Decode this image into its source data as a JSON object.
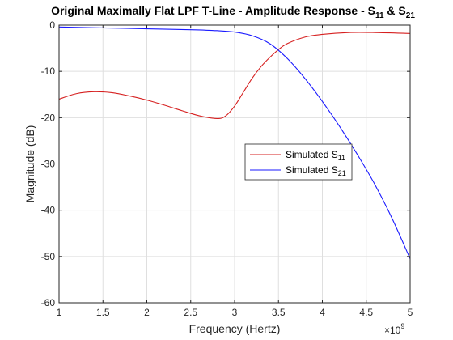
{
  "chart_data": {
    "type": "line",
    "title": "Original Maximally Flat LPF T-Line - Amplitude Response - S",
    "title_sub_1": "11",
    "title_amp": " & S",
    "title_sub_2": "21",
    "xlabel": "Frequency (Hertz)",
    "ylabel": "Magnitude (dB)",
    "x_exponent_base": "×10",
    "x_exponent_power": "9",
    "xlim": [
      1,
      5
    ],
    "ylim": [
      -60,
      0
    ],
    "x_ticks": [
      "1",
      "1.5",
      "2",
      "2.5",
      "3",
      "3.5",
      "4",
      "4.5",
      "5"
    ],
    "y_ticks": [
      "0",
      "-10",
      "-20",
      "-30",
      "-40",
      "-50",
      "-60"
    ],
    "grid": true,
    "legend_position": "center-right",
    "series": [
      {
        "name": "Simulated S",
        "name_sub": "11",
        "color": "#d62020",
        "x": [
          1.0,
          1.2,
          1.4,
          1.6,
          1.8,
          2.0,
          2.2,
          2.4,
          2.6,
          2.8,
          2.9,
          3.0,
          3.1,
          3.2,
          3.3,
          3.4,
          3.5,
          3.6,
          3.8,
          4.0,
          4.3,
          4.6,
          5.0
        ],
        "y": [
          -16.0,
          -14.8,
          -14.4,
          -14.6,
          -15.3,
          -16.2,
          -17.3,
          -18.5,
          -19.6,
          -20.2,
          -19.6,
          -17.5,
          -14.5,
          -11.5,
          -9.0,
          -7.0,
          -5.3,
          -4.0,
          -2.6,
          -2.0,
          -1.6,
          -1.6,
          -1.8
        ]
      },
      {
        "name": "Simulated S",
        "name_sub": "21",
        "color": "#1a1aff",
        "x": [
          1.0,
          1.5,
          2.0,
          2.5,
          2.8,
          3.0,
          3.2,
          3.4,
          3.6,
          3.8,
          4.0,
          4.2,
          4.4,
          4.6,
          4.8,
          5.0
        ],
        "y": [
          -0.4,
          -0.6,
          -0.8,
          -1.0,
          -1.2,
          -1.5,
          -2.3,
          -4.0,
          -7.2,
          -11.5,
          -16.5,
          -22.0,
          -28.0,
          -34.5,
          -42.0,
          -50.5
        ]
      }
    ]
  }
}
